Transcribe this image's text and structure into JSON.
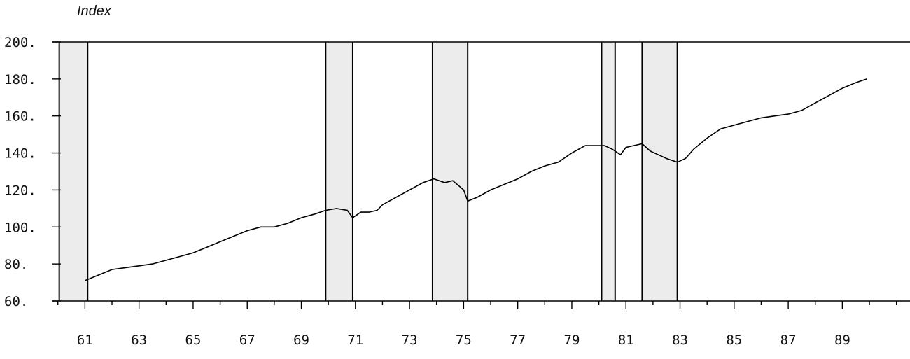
{
  "chart_data": {
    "type": "line",
    "title": "",
    "ylabel": "Index",
    "xlabel": "",
    "xlim": [
      1959.8,
      1991.5
    ],
    "ylim": [
      60,
      200
    ],
    "y_ticks": [
      60,
      80,
      100,
      120,
      140,
      160,
      180,
      200
    ],
    "y_tick_labels": [
      "60.",
      "80.",
      "100.",
      "120.",
      "140.",
      "160.",
      "180.",
      "200."
    ],
    "x_ticks": [
      1961,
      1963,
      1965,
      1967,
      1969,
      1971,
      1973,
      1975,
      1977,
      1979,
      1981,
      1983,
      1985,
      1987,
      1989
    ],
    "x_tick_labels": [
      "61",
      "63",
      "65",
      "67",
      "69",
      "71",
      "73",
      "75",
      "77",
      "79",
      "81",
      "83",
      "85",
      "87",
      "89"
    ],
    "shaded_periods": [
      {
        "start": 1960.05,
        "end": 1961.1
      },
      {
        "start": 1969.9,
        "end": 1970.9
      },
      {
        "start": 1973.85,
        "end": 1975.15
      },
      {
        "start": 1980.1,
        "end": 1980.6
      },
      {
        "start": 1981.6,
        "end": 1982.9
      }
    ],
    "series": [
      {
        "x": [
          1961.0,
          1961.5,
          1962.0,
          1962.5,
          1963.0,
          1963.5,
          1964.0,
          1964.5,
          1965.0,
          1965.5,
          1966.0,
          1966.5,
          1967.0,
          1967.5,
          1968.0,
          1968.5,
          1969.0,
          1969.5,
          1969.9,
          1970.3,
          1970.7,
          1970.9,
          1971.2,
          1971.5,
          1971.8,
          1972.0,
          1972.5,
          1973.0,
          1973.5,
          1973.9,
          1974.3,
          1974.6,
          1975.0,
          1975.15,
          1975.5,
          1976.0,
          1976.5,
          1977.0,
          1977.5,
          1978.0,
          1978.5,
          1979.0,
          1979.5,
          1980.0,
          1980.2,
          1980.5,
          1980.8,
          1981.0,
          1981.3,
          1981.6,
          1981.9,
          1982.2,
          1982.5,
          1982.9,
          1983.2,
          1983.5,
          1984.0,
          1984.5,
          1985.0,
          1985.5,
          1986.0,
          1986.5,
          1987.0,
          1987.5,
          1988.0,
          1988.5,
          1989.0,
          1989.5,
          1989.9
        ],
        "values": [
          71,
          74,
          77,
          78,
          79,
          80,
          82,
          84,
          86,
          89,
          92,
          95,
          98,
          100,
          100,
          102,
          105,
          107,
          109,
          110,
          109,
          105,
          108,
          108,
          109,
          112,
          116,
          120,
          124,
          126,
          124,
          125,
          120,
          114,
          116,
          120,
          123,
          126,
          130,
          133,
          135,
          140,
          144,
          144,
          144,
          142,
          139,
          143,
          144,
          145,
          141,
          139,
          137,
          135,
          137,
          142,
          148,
          153,
          155,
          157,
          159,
          160,
          161,
          163,
          167,
          171,
          175,
          178,
          180
        ]
      }
    ]
  }
}
